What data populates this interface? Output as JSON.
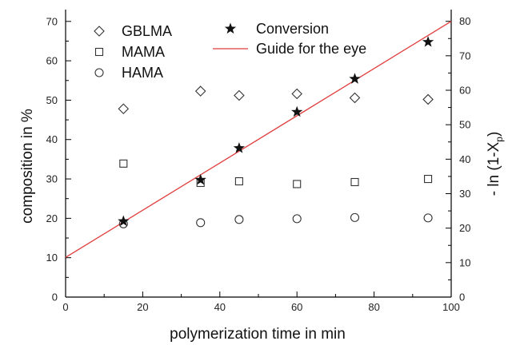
{
  "chart_data": {
    "type": "scatter",
    "title": "",
    "xlabel": "polymerization time in min",
    "ylabel_left": "composition in %",
    "ylabel_right_main": "- ln (1-X",
    "ylabel_right_sub": "p",
    "ylabel_right_close": ")",
    "xlim": [
      0,
      100
    ],
    "ylim_left": [
      0,
      73
    ],
    "ylim_right": [
      0,
      83.4
    ],
    "x_ticks": [
      0,
      20,
      40,
      60,
      80,
      100
    ],
    "y_left_ticks": [
      0,
      10,
      20,
      30,
      40,
      50,
      60,
      70
    ],
    "y_right_ticks": [
      0,
      10,
      20,
      30,
      40,
      50,
      60,
      70,
      80
    ],
    "grid": false,
    "legend_position": "top",
    "series": [
      {
        "name": "GBLMA",
        "marker": "diamond",
        "axis": "left",
        "x": [
          15,
          35,
          45,
          60,
          75,
          94
        ],
        "y": [
          47.8,
          52.3,
          51.2,
          51.6,
          50.6,
          50.2
        ]
      },
      {
        "name": "MAMA",
        "marker": "square",
        "axis": "left",
        "x": [
          15,
          35,
          45,
          60,
          75,
          94
        ],
        "y": [
          33.9,
          29.0,
          29.4,
          28.7,
          29.2,
          30.0
        ]
      },
      {
        "name": "HAMA",
        "marker": "circle",
        "axis": "left",
        "x": [
          15,
          35,
          45,
          60,
          75,
          94
        ],
        "y": [
          18.6,
          18.9,
          19.7,
          19.9,
          20.2,
          20.1
        ]
      },
      {
        "name": "Conversion",
        "marker": "star",
        "axis": "right",
        "x": [
          15,
          35,
          45,
          60,
          75,
          94
        ],
        "y": [
          22.0,
          34.0,
          43.2,
          53.7,
          63.3,
          74.0
        ]
      },
      {
        "name": "Guide for the eye",
        "style": "line",
        "color": "#e03c3c",
        "axis": "right",
        "x": [
          0,
          100
        ],
        "y": [
          11.5,
          80.0
        ]
      }
    ]
  }
}
